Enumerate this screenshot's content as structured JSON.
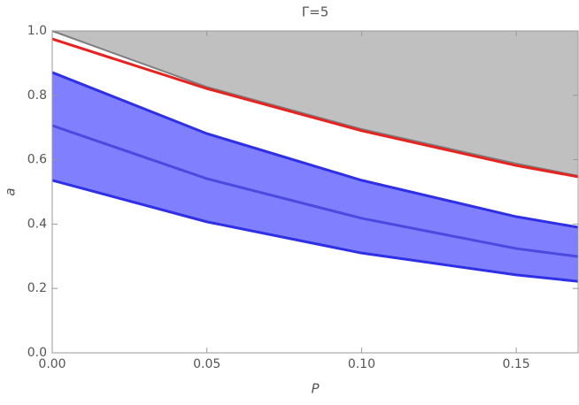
{
  "chart_data": {
    "type": "line",
    "title": "Γ=5",
    "x_label": "P",
    "y_label": "a",
    "x": [
      0,
      0.05,
      0.1,
      0.15,
      0.17
    ],
    "xlim": [
      0,
      0.17
    ],
    "ylim": [
      0,
      1
    ],
    "xticks": [
      {
        "value": 0,
        "label": "0.00"
      },
      {
        "value": 0.05,
        "label": "0.05"
      },
      {
        "value": 0.1,
        "label": "0.10"
      },
      {
        "value": 0.15,
        "label": "0.15"
      }
    ],
    "yticks": [
      {
        "value": 0,
        "label": "0.0"
      },
      {
        "value": 0.2,
        "label": "0.2"
      },
      {
        "value": 0.4,
        "label": "0.4"
      },
      {
        "value": 0.6,
        "label": "0.6"
      },
      {
        "value": 0.8,
        "label": "0.8"
      },
      {
        "value": 1,
        "label": "1.0"
      }
    ],
    "series": [
      {
        "color": "#7f7f7f",
        "fill": "#c0c0c0",
        "fill_to": "top",
        "values": [
          1.0,
          0.826,
          0.695,
          0.588,
          0.55
        ]
      },
      {
        "color": "#e52421",
        "values": [
          0.975,
          0.821,
          0.69,
          0.582,
          0.547
        ]
      },
      {
        "color": "#2f2fe6",
        "fill": "#8080ff",
        "fill_to": 4,
        "values": [
          0.871,
          0.681,
          0.536,
          0.423,
          0.39
        ]
      },
      {
        "color": "#4a4ae0",
        "values": [
          0.706,
          0.541,
          0.418,
          0.324,
          0.299
        ]
      },
      {
        "color": "#2f2fe6",
        "values": [
          0.536,
          0.407,
          0.31,
          0.242,
          0.222
        ]
      }
    ]
  }
}
